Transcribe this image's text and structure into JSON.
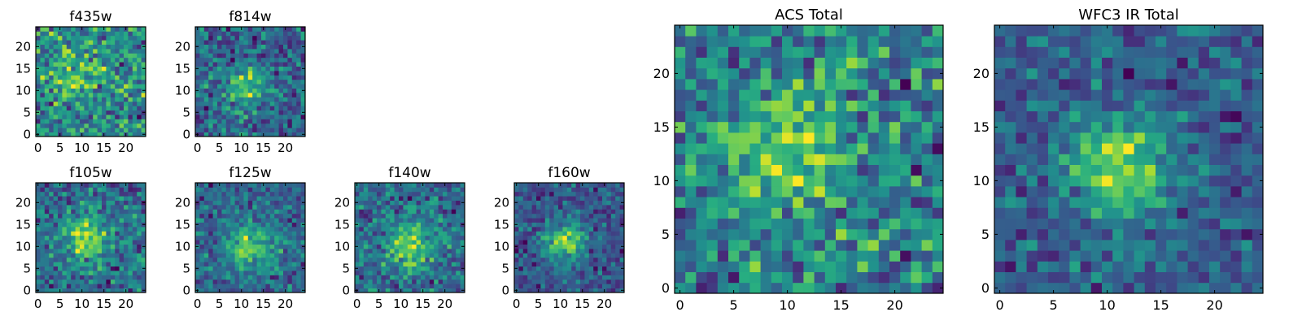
{
  "chart_data": [
    {
      "type": "heatmap",
      "title": "f435w",
      "xlabel": "",
      "ylabel": "",
      "xticks": [
        0,
        5,
        10,
        15,
        20
      ],
      "yticks": [
        0,
        5,
        10,
        15,
        20
      ],
      "xlim": [
        0,
        25
      ],
      "ylim": [
        0,
        25
      ],
      "grid_size": 25,
      "source_center": [
        9,
        13
      ],
      "source_amplitude": 0.35,
      "source_width": 3.0,
      "noise": 0.34,
      "seed": 11,
      "colormap": "viridis"
    },
    {
      "type": "heatmap",
      "title": "f814w",
      "xlabel": "",
      "ylabel": "",
      "xticks": [
        0,
        5,
        10,
        15,
        20
      ],
      "yticks": [
        0,
        5,
        10,
        15,
        20
      ],
      "xlim": [
        0,
        25
      ],
      "ylim": [
        0,
        25
      ],
      "grid_size": 25,
      "source_center": [
        11,
        11
      ],
      "source_amplitude": 0.45,
      "source_width": 3.2,
      "noise": 0.3,
      "seed": 23,
      "colormap": "viridis"
    },
    {
      "type": "heatmap",
      "title": "f105w",
      "xlabel": "",
      "ylabel": "",
      "xticks": [
        0,
        5,
        10,
        15,
        20
      ],
      "yticks": [
        0,
        5,
        10,
        15,
        20
      ],
      "xlim": [
        0,
        25
      ],
      "ylim": [
        0,
        25
      ],
      "grid_size": 25,
      "source_center": [
        11,
        12
      ],
      "source_amplitude": 0.55,
      "source_width": 3.5,
      "noise": 0.28,
      "seed": 37,
      "colormap": "viridis"
    },
    {
      "type": "heatmap",
      "title": "f125w",
      "xlabel": "",
      "ylabel": "",
      "xticks": [
        0,
        5,
        10,
        15,
        20
      ],
      "yticks": [
        0,
        5,
        10,
        15,
        20
      ],
      "xlim": [
        0,
        25
      ],
      "ylim": [
        0,
        25
      ],
      "grid_size": 25,
      "source_center": [
        12,
        10
      ],
      "source_amplitude": 0.55,
      "source_width": 3.8,
      "noise": 0.28,
      "seed": 41,
      "colormap": "viridis"
    },
    {
      "type": "heatmap",
      "title": "f140w",
      "xlabel": "",
      "ylabel": "",
      "xticks": [
        0,
        5,
        10,
        15,
        20
      ],
      "yticks": [
        0,
        5,
        10,
        15,
        20
      ],
      "xlim": [
        0,
        25
      ],
      "ylim": [
        0,
        25
      ],
      "grid_size": 25,
      "source_center": [
        12,
        10
      ],
      "source_amplitude": 0.6,
      "source_width": 3.5,
      "noise": 0.3,
      "seed": 53,
      "colormap": "viridis"
    },
    {
      "type": "heatmap",
      "title": "f160w",
      "xlabel": "",
      "ylabel": "",
      "xticks": [
        0,
        5,
        10,
        15,
        20
      ],
      "yticks": [
        0,
        5,
        10,
        15,
        20
      ],
      "xlim": [
        0,
        25
      ],
      "ylim": [
        0,
        25
      ],
      "grid_size": 25,
      "source_center": [
        11,
        11
      ],
      "source_amplitude": 0.75,
      "source_width": 3.2,
      "noise": 0.26,
      "seed": 67,
      "colormap": "viridis"
    },
    {
      "type": "heatmap",
      "title": "ACS Total",
      "xlabel": "",
      "ylabel": "",
      "xticks": [
        0,
        5,
        10,
        15,
        20
      ],
      "yticks": [
        0,
        5,
        10,
        15,
        20
      ],
      "xlim": [
        0,
        25
      ],
      "ylim": [
        0,
        25
      ],
      "grid_size": 25,
      "source_center": [
        10,
        13
      ],
      "source_amplitude": 0.35,
      "source_width": 4.0,
      "noise": 0.3,
      "seed": 79,
      "colormap": "viridis"
    },
    {
      "type": "heatmap",
      "title": "WFC3 IR Total",
      "xlabel": "",
      "ylabel": "",
      "xticks": [
        0,
        5,
        10,
        15,
        20
      ],
      "yticks": [
        0,
        5,
        10,
        15,
        20
      ],
      "xlim": [
        0,
        25
      ],
      "ylim": [
        0,
        25
      ],
      "grid_size": 25,
      "source_center": [
        11,
        11
      ],
      "source_amplitude": 0.7,
      "source_width": 3.3,
      "noise": 0.24,
      "seed": 97,
      "colormap": "viridis"
    }
  ]
}
